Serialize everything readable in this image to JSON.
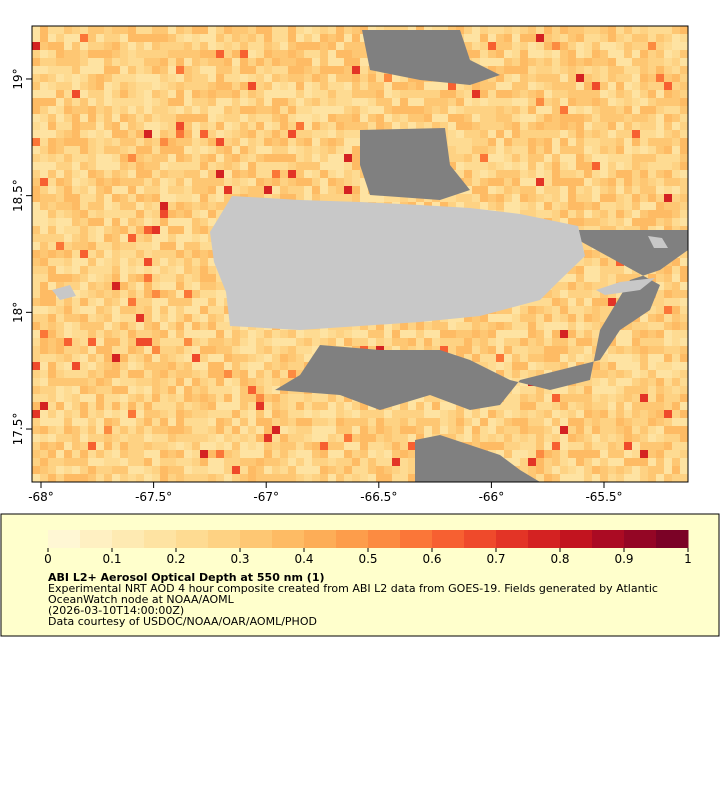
{
  "map": {
    "xlim": [
      -68.04,
      -65.127
    ],
    "ylim": [
      17.273,
      19.227
    ],
    "xticks": [
      {
        "value": -68,
        "label": "-68°"
      },
      {
        "value": -67.5,
        "label": "-67.5°"
      },
      {
        "value": -67,
        "label": "-67°"
      },
      {
        "value": -66.5,
        "label": "-66.5°"
      },
      {
        "value": -66,
        "label": "-66°"
      },
      {
        "value": -65.5,
        "label": "-65.5°"
      }
    ],
    "yticks": [
      {
        "value": 17.5,
        "label": "17.5°"
      },
      {
        "value": 18,
        "label": "18°"
      },
      {
        "value": 18.5,
        "label": "18.5°"
      },
      {
        "value": 19,
        "label": "19°"
      }
    ],
    "land_color": "#c8c8c8",
    "nodata_color": "#808080"
  },
  "colorbar": {
    "lim": [
      0,
      1
    ],
    "ticks": [
      0,
      0.1,
      0.2,
      0.3,
      0.4,
      0.5,
      0.6,
      0.7,
      0.8,
      0.9,
      1
    ],
    "colors": [
      "#fff7d4",
      "#fff0c2",
      "#feeab2",
      "#fee3a2",
      "#fedb92",
      "#fed283",
      "#fec773",
      "#febb64",
      "#fdad57",
      "#fd9d4b",
      "#fc8b41",
      "#fb7638",
      "#f76031",
      "#ef4a2b",
      "#e33426",
      "#d42222",
      "#c2141f",
      "#ab0b23",
      "#940625",
      "#7b0226"
    ]
  },
  "legend": {
    "title": "ABI L2+ Aerosol Optical Depth at 550 nm (1)",
    "lines": [
      "Experimental NRT AOD 4 hour composite created from ABI L2 data from GOES-19. Fields generated by Atlantic",
      "OceanWatch node at NOAA/AOML",
      "(2026-03-10T14:00:00Z)",
      "Data courtesy of USDOC/NOAA/OAR/AOML/PHOD"
    ]
  }
}
